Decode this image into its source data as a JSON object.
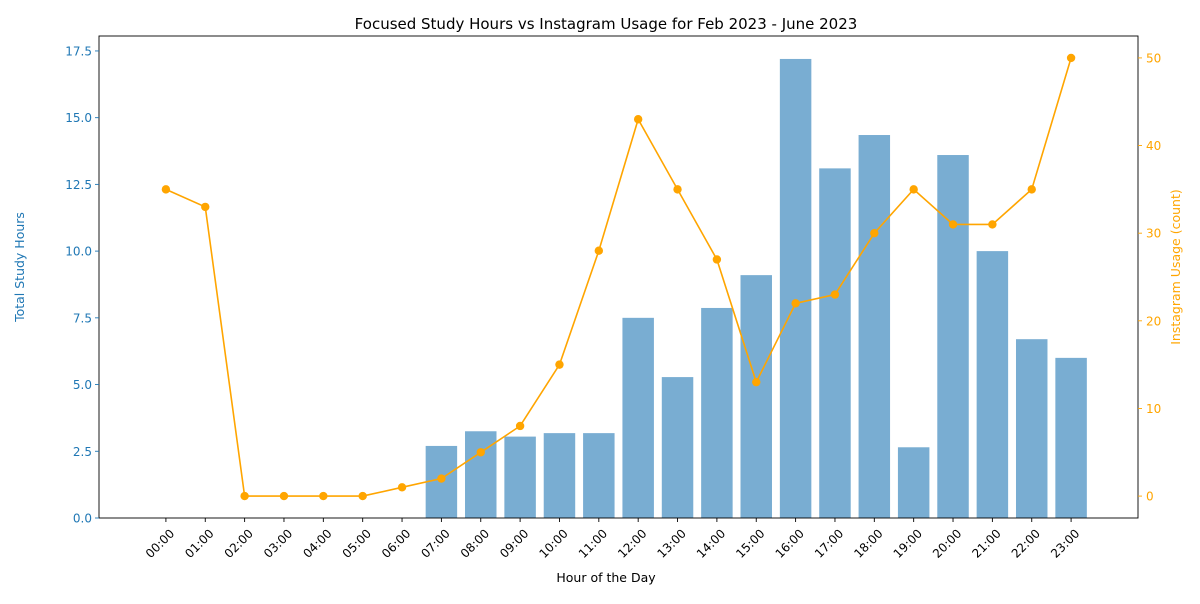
{
  "chart_data": {
    "type": "bar",
    "title": "Focused Study Hours vs Instagram Usage for Feb 2023 - June 2023",
    "xlabel": "Hour of the Day",
    "ylabel": "Total Study Hours",
    "y2label": "Instagram Usage (count)",
    "categories": [
      "00:00",
      "01:00",
      "02:00",
      "03:00",
      "04:00",
      "05:00",
      "06:00",
      "07:00",
      "08:00",
      "09:00",
      "10:00",
      "11:00",
      "12:00",
      "13:00",
      "14:00",
      "15:00",
      "16:00",
      "17:00",
      "18:00",
      "19:00",
      "20:00",
      "21:00",
      "22:00",
      "23:00"
    ],
    "ylim": [
      0,
      18.06
    ],
    "yticks": [
      "0.0",
      "2.5",
      "5.0",
      "7.5",
      "10.0",
      "12.5",
      "15.0",
      "17.5"
    ],
    "y2lim": [
      -2.5,
      52.5
    ],
    "y2ticks": [
      "0",
      "10",
      "20",
      "30",
      "40",
      "50"
    ],
    "grid": false,
    "series": [
      {
        "type": "bar",
        "axis": "left",
        "color": "#1f77b4",
        "values": [
          0,
          0,
          0,
          0,
          0,
          0,
          0,
          2.7,
          3.25,
          3.05,
          3.18,
          3.18,
          7.5,
          5.28,
          7.87,
          9.1,
          17.2,
          13.1,
          14.35,
          2.65,
          13.6,
          10.0,
          6.7,
          6.0
        ]
      },
      {
        "type": "line",
        "axis": "right",
        "color": "#ffa500",
        "values": [
          35,
          33,
          0,
          0,
          0,
          0,
          1,
          2,
          5,
          8,
          15,
          28,
          43,
          35,
          27,
          13,
          22,
          23,
          30,
          35,
          31,
          31,
          35,
          50
        ]
      }
    ],
    "colors": {
      "left_axis": "#1f77b4",
      "right_axis": "#ffa500",
      "bar_fill": "#1f77b4",
      "bar_opacity": "0.6",
      "line": "#ffa500"
    }
  }
}
